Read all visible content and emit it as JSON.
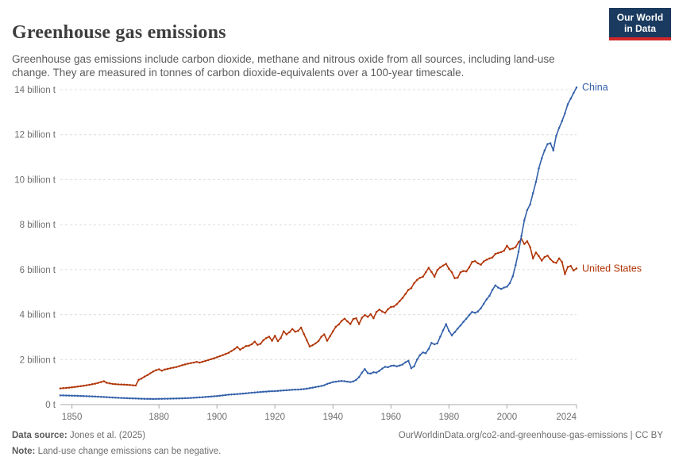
{
  "header": {
    "title": "Greenhouse gas emissions",
    "subtitle": "Greenhouse gas emissions include carbon dioxide, methane and nitrous oxide from all sources, including land-use change. They are measured in tonnes of carbon dioxide-equivalents over a 100-year timescale.",
    "logo": {
      "line1": "Our World",
      "line2": "in Data",
      "bg_color": "#1a3a5f",
      "bar_color": "#d2262a"
    }
  },
  "chart_data": {
    "type": "line",
    "title": "Greenhouse gas emissions",
    "xlabel": "",
    "ylabel": "",
    "x_range": [
      1846,
      2024
    ],
    "ylim": [
      0,
      14
    ],
    "grid": "dashed-horizontal",
    "legend_position": "end-of-line-labels",
    "x_ticks": [
      1850,
      1880,
      1900,
      1920,
      1940,
      1960,
      1980,
      2000,
      2024
    ],
    "y_ticks": [
      {
        "v": 0,
        "label": "0 t"
      },
      {
        "v": 2,
        "label": "2 billion t"
      },
      {
        "v": 4,
        "label": "4 billion t"
      },
      {
        "v": 6,
        "label": "6 billion t"
      },
      {
        "v": 8,
        "label": "8 billion t"
      },
      {
        "v": 10,
        "label": "10 billion t"
      },
      {
        "v": 12,
        "label": "12 billion t"
      },
      {
        "v": 14,
        "label": "14 billion t"
      }
    ],
    "series": [
      {
        "name": "United States",
        "color": "#b13507",
        "points": [
          [
            1846,
            0.72
          ],
          [
            1848,
            0.74
          ],
          [
            1850,
            0.77
          ],
          [
            1852,
            0.8
          ],
          [
            1854,
            0.84
          ],
          [
            1856,
            0.88
          ],
          [
            1858,
            0.93
          ],
          [
            1860,
            1.0
          ],
          [
            1861,
            1.04
          ],
          [
            1862,
            0.97
          ],
          [
            1864,
            0.92
          ],
          [
            1866,
            0.9
          ],
          [
            1868,
            0.89
          ],
          [
            1870,
            0.87
          ],
          [
            1872,
            0.85
          ],
          [
            1873,
            1.1
          ],
          [
            1874,
            1.16
          ],
          [
            1875,
            1.24
          ],
          [
            1876,
            1.31
          ],
          [
            1877,
            1.39
          ],
          [
            1878,
            1.47
          ],
          [
            1879,
            1.53
          ],
          [
            1880,
            1.57
          ],
          [
            1881,
            1.51
          ],
          [
            1882,
            1.56
          ],
          [
            1884,
            1.62
          ],
          [
            1886,
            1.67
          ],
          [
            1888,
            1.75
          ],
          [
            1890,
            1.82
          ],
          [
            1892,
            1.87
          ],
          [
            1893,
            1.9
          ],
          [
            1894,
            1.87
          ],
          [
            1896,
            1.94
          ],
          [
            1898,
            2.02
          ],
          [
            1900,
            2.1
          ],
          [
            1902,
            2.2
          ],
          [
            1904,
            2.3
          ],
          [
            1905,
            2.38
          ],
          [
            1906,
            2.46
          ],
          [
            1907,
            2.56
          ],
          [
            1908,
            2.44
          ],
          [
            1909,
            2.52
          ],
          [
            1910,
            2.6
          ],
          [
            1911,
            2.62
          ],
          [
            1912,
            2.68
          ],
          [
            1913,
            2.8
          ],
          [
            1914,
            2.66
          ],
          [
            1915,
            2.7
          ],
          [
            1916,
            2.86
          ],
          [
            1917,
            2.96
          ],
          [
            1918,
            3.02
          ],
          [
            1919,
            2.84
          ],
          [
            1920,
            3.06
          ],
          [
            1921,
            2.82
          ],
          [
            1922,
            2.96
          ],
          [
            1923,
            3.26
          ],
          [
            1924,
            3.12
          ],
          [
            1925,
            3.22
          ],
          [
            1926,
            3.36
          ],
          [
            1927,
            3.24
          ],
          [
            1928,
            3.28
          ],
          [
            1929,
            3.42
          ],
          [
            1930,
            3.14
          ],
          [
            1931,
            2.86
          ],
          [
            1932,
            2.58
          ],
          [
            1933,
            2.64
          ],
          [
            1934,
            2.72
          ],
          [
            1935,
            2.82
          ],
          [
            1936,
            3.02
          ],
          [
            1937,
            3.12
          ],
          [
            1938,
            2.84
          ],
          [
            1939,
            3.04
          ],
          [
            1940,
            3.26
          ],
          [
            1941,
            3.46
          ],
          [
            1942,
            3.56
          ],
          [
            1943,
            3.72
          ],
          [
            1944,
            3.82
          ],
          [
            1945,
            3.7
          ],
          [
            1946,
            3.58
          ],
          [
            1947,
            3.8
          ],
          [
            1948,
            3.84
          ],
          [
            1949,
            3.58
          ],
          [
            1950,
            3.86
          ],
          [
            1951,
            3.98
          ],
          [
            1952,
            3.9
          ],
          [
            1953,
            4.02
          ],
          [
            1954,
            3.84
          ],
          [
            1955,
            4.12
          ],
          [
            1956,
            4.22
          ],
          [
            1957,
            4.14
          ],
          [
            1958,
            4.08
          ],
          [
            1959,
            4.24
          ],
          [
            1960,
            4.34
          ],
          [
            1961,
            4.36
          ],
          [
            1962,
            4.46
          ],
          [
            1963,
            4.6
          ],
          [
            1964,
            4.74
          ],
          [
            1965,
            4.92
          ],
          [
            1966,
            5.1
          ],
          [
            1967,
            5.18
          ],
          [
            1968,
            5.4
          ],
          [
            1969,
            5.54
          ],
          [
            1970,
            5.64
          ],
          [
            1971,
            5.68
          ],
          [
            1972,
            5.88
          ],
          [
            1973,
            6.08
          ],
          [
            1974,
            5.9
          ],
          [
            1975,
            5.68
          ],
          [
            1976,
            5.98
          ],
          [
            1977,
            6.1
          ],
          [
            1978,
            6.18
          ],
          [
            1979,
            6.26
          ],
          [
            1980,
            6.04
          ],
          [
            1981,
            5.88
          ],
          [
            1982,
            5.62
          ],
          [
            1983,
            5.64
          ],
          [
            1984,
            5.88
          ],
          [
            1985,
            5.94
          ],
          [
            1986,
            5.92
          ],
          [
            1987,
            6.1
          ],
          [
            1988,
            6.34
          ],
          [
            1989,
            6.38
          ],
          [
            1990,
            6.28
          ],
          [
            1991,
            6.22
          ],
          [
            1992,
            6.36
          ],
          [
            1993,
            6.44
          ],
          [
            1994,
            6.5
          ],
          [
            1995,
            6.54
          ],
          [
            1996,
            6.7
          ],
          [
            1997,
            6.74
          ],
          [
            1998,
            6.78
          ],
          [
            1999,
            6.84
          ],
          [
            2000,
            7.06
          ],
          [
            2001,
            6.9
          ],
          [
            2002,
            6.94
          ],
          [
            2003,
            7.0
          ],
          [
            2004,
            7.22
          ],
          [
            2005,
            7.36
          ],
          [
            2006,
            7.14
          ],
          [
            2007,
            7.26
          ],
          [
            2008,
            7.0
          ],
          [
            2009,
            6.5
          ],
          [
            2010,
            6.76
          ],
          [
            2011,
            6.6
          ],
          [
            2012,
            6.4
          ],
          [
            2013,
            6.56
          ],
          [
            2014,
            6.62
          ],
          [
            2015,
            6.46
          ],
          [
            2016,
            6.34
          ],
          [
            2017,
            6.3
          ],
          [
            2018,
            6.5
          ],
          [
            2019,
            6.34
          ],
          [
            2020,
            5.8
          ],
          [
            2021,
            6.12
          ],
          [
            2022,
            6.16
          ],
          [
            2023,
            5.96
          ],
          [
            2024,
            6.05
          ]
        ]
      },
      {
        "name": "China",
        "color": "#3360a9",
        "points": [
          [
            1846,
            0.41
          ],
          [
            1850,
            0.4
          ],
          [
            1854,
            0.38
          ],
          [
            1858,
            0.36
          ],
          [
            1862,
            0.33
          ],
          [
            1866,
            0.3
          ],
          [
            1870,
            0.28
          ],
          [
            1874,
            0.26
          ],
          [
            1878,
            0.25
          ],
          [
            1882,
            0.26
          ],
          [
            1886,
            0.27
          ],
          [
            1890,
            0.29
          ],
          [
            1894,
            0.32
          ],
          [
            1898,
            0.36
          ],
          [
            1900,
            0.38
          ],
          [
            1902,
            0.41
          ],
          [
            1904,
            0.44
          ],
          [
            1906,
            0.46
          ],
          [
            1908,
            0.48
          ],
          [
            1910,
            0.5
          ],
          [
            1912,
            0.53
          ],
          [
            1914,
            0.55
          ],
          [
            1916,
            0.57
          ],
          [
            1918,
            0.59
          ],
          [
            1920,
            0.6
          ],
          [
            1922,
            0.62
          ],
          [
            1924,
            0.64
          ],
          [
            1926,
            0.66
          ],
          [
            1928,
            0.67
          ],
          [
            1930,
            0.69
          ],
          [
            1932,
            0.73
          ],
          [
            1934,
            0.78
          ],
          [
            1936,
            0.83
          ],
          [
            1937,
            0.86
          ],
          [
            1938,
            0.92
          ],
          [
            1939,
            0.96
          ],
          [
            1940,
            1.0
          ],
          [
            1941,
            1.02
          ],
          [
            1942,
            1.04
          ],
          [
            1943,
            1.05
          ],
          [
            1944,
            1.04
          ],
          [
            1945,
            1.02
          ],
          [
            1946,
            1.0
          ],
          [
            1947,
            1.03
          ],
          [
            1948,
            1.1
          ],
          [
            1949,
            1.22
          ],
          [
            1950,
            1.42
          ],
          [
            1951,
            1.58
          ],
          [
            1952,
            1.4
          ],
          [
            1953,
            1.38
          ],
          [
            1954,
            1.44
          ],
          [
            1955,
            1.42
          ],
          [
            1956,
            1.5
          ],
          [
            1957,
            1.6
          ],
          [
            1958,
            1.68
          ],
          [
            1959,
            1.66
          ],
          [
            1960,
            1.72
          ],
          [
            1961,
            1.74
          ],
          [
            1962,
            1.7
          ],
          [
            1963,
            1.74
          ],
          [
            1964,
            1.78
          ],
          [
            1965,
            1.88
          ],
          [
            1966,
            1.95
          ],
          [
            1967,
            1.62
          ],
          [
            1968,
            1.7
          ],
          [
            1969,
            2.0
          ],
          [
            1970,
            2.2
          ],
          [
            1971,
            2.32
          ],
          [
            1972,
            2.28
          ],
          [
            1973,
            2.48
          ],
          [
            1974,
            2.74
          ],
          [
            1975,
            2.68
          ],
          [
            1976,
            2.72
          ],
          [
            1977,
            3.02
          ],
          [
            1978,
            3.3
          ],
          [
            1979,
            3.58
          ],
          [
            1980,
            3.28
          ],
          [
            1981,
            3.08
          ],
          [
            1982,
            3.22
          ],
          [
            1983,
            3.38
          ],
          [
            1984,
            3.52
          ],
          [
            1985,
            3.68
          ],
          [
            1986,
            3.82
          ],
          [
            1987,
            3.98
          ],
          [
            1988,
            4.12
          ],
          [
            1989,
            4.08
          ],
          [
            1990,
            4.14
          ],
          [
            1991,
            4.28
          ],
          [
            1992,
            4.48
          ],
          [
            1993,
            4.68
          ],
          [
            1994,
            4.84
          ],
          [
            1995,
            5.1
          ],
          [
            1996,
            5.3
          ],
          [
            1997,
            5.2
          ],
          [
            1998,
            5.14
          ],
          [
            1999,
            5.2
          ],
          [
            2000,
            5.24
          ],
          [
            2001,
            5.4
          ],
          [
            2002,
            5.7
          ],
          [
            2003,
            6.2
          ],
          [
            2004,
            6.8
          ],
          [
            2005,
            7.5
          ],
          [
            2006,
            8.2
          ],
          [
            2007,
            8.65
          ],
          [
            2008,
            8.9
          ],
          [
            2009,
            9.4
          ],
          [
            2010,
            9.9
          ],
          [
            2011,
            10.5
          ],
          [
            2012,
            10.95
          ],
          [
            2013,
            11.3
          ],
          [
            2014,
            11.58
          ],
          [
            2015,
            11.62
          ],
          [
            2016,
            11.3
          ],
          [
            2017,
            11.95
          ],
          [
            2018,
            12.3
          ],
          [
            2019,
            12.6
          ],
          [
            2020,
            12.95
          ],
          [
            2021,
            13.35
          ],
          [
            2022,
            13.6
          ],
          [
            2023,
            13.85
          ],
          [
            2024,
            14.1
          ]
        ]
      }
    ]
  },
  "footer": {
    "datasource_label": "Data source:",
    "datasource_value": " Jones et al. (2025)",
    "citation": "OurWorldinData.org/co2-and-greenhouse-gas-emissions | CC BY",
    "note_label": "Note:",
    "note_value": " Land-use change emissions can be negative."
  },
  "colors": {
    "gridline": "#dcdcdc",
    "axis": "#a8a8a8",
    "tick_text": "#6e6e6e"
  }
}
